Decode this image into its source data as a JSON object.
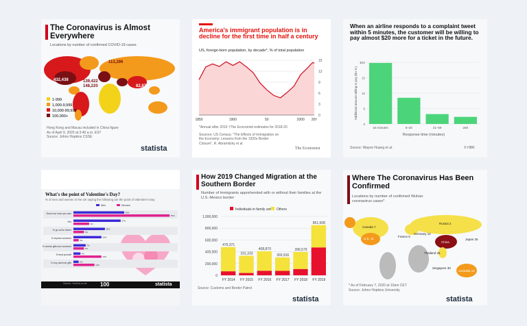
{
  "card1": {
    "title": "The Coronavirus is Almost Everywhere",
    "subtitle": "Locations by number of confirmed COVID-19 cases",
    "labels": [
      "113,296",
      "432,438",
      "139,422",
      "148,220",
      "82,870"
    ],
    "legend": [
      {
        "label": "1-999",
        "color": "#f3d21a"
      },
      {
        "label": "1,000-9,999",
        "color": "#f39a1c"
      },
      {
        "label": "10,000-99,999",
        "color": "#d7191c"
      },
      {
        "label": "100,000+",
        "color": "#7a0f14"
      }
    ],
    "notes": [
      "Hong Kong and Macau included in China figure",
      "As of April 9, 2020 at 3:40 a.m. EST",
      "Source: Johns Hopkins CSSE"
    ],
    "logo": "statista"
  },
  "card2": {
    "title": "America's immigrant population is in decline for the first time in half a century",
    "subtitle": "US, foreign-born population, by decade*, % of total population",
    "notes": [
      "*Annual after 2010  †The Economist estimates for 2018-20",
      "Sources: US Census; \"The Effects of Immigration on the Economy: Lessons from the 1920s Border Closure\", R. Abramitzky et al"
    ],
    "logo": "The Economist"
  },
  "card3": {
    "title": "When an airline responds to a complaint tweet within 5 minutes, the customer will be willing to pay almost $20 more for a ticket in the future.",
    "source": "Source: Wayne Huang et al.",
    "logo": "© HBR"
  },
  "card4": {
    "title": "What's the point of Valentine's Day?",
    "subtitle": "% of men and women in the UK saying the following are the point of Valentine's Day",
    "source": "Source: YouGov.co.uk",
    "badge": "100",
    "logo": "statista"
  },
  "card5": {
    "title": "How 2019 Changed Migration at the Southern Border",
    "subtitle": "Number of immigrants apprehended with or without their families at the U.S.-Mexico border",
    "source": "Source: Customs and Border Patrol",
    "logo": "statista"
  },
  "card6": {
    "title": "Where The Coronavirus Has Been Confirmed",
    "subtitle": "Locations by number of confirmed Wuhan coronavirus cases*",
    "labels": [
      "Canada 7",
      "U.S. 11",
      "Russia 2",
      "Germany 12",
      "France 6",
      "China",
      "Japan 25",
      "Singapore 30",
      "Thailand 25",
      "Australia 12"
    ],
    "notes": [
      "* As of February 7, 2020 at 10am CET",
      "Source: Johns Hopkins University"
    ],
    "logo": "statista"
  },
  "chart_data": [
    {
      "type": "area",
      "title": "America's immigrant population is in decline for the first time in half a century",
      "ylabel": "% of total population",
      "ylim": [
        0,
        15
      ],
      "yticks": [
        0,
        3,
        6,
        9,
        12,
        15
      ],
      "xticklabels": [
        "1850",
        "1900",
        "50",
        "2000",
        "20†"
      ],
      "grid": true,
      "x": [
        1850,
        1860,
        1870,
        1880,
        1890,
        1900,
        1910,
        1920,
        1930,
        1940,
        1950,
        1960,
        1970,
        1980,
        1990,
        2000,
        2010,
        2015,
        2018,
        2020
      ],
      "y": [
        9.7,
        13.2,
        14.0,
        13.3,
        14.6,
        13.6,
        14.6,
        13.2,
        11.6,
        8.8,
        6.9,
        5.4,
        4.7,
        6.2,
        7.9,
        11.1,
        12.9,
        13.9,
        14.4,
        14.2
      ]
    },
    {
      "type": "bar",
      "categories": [
        "≤5 minutes",
        "6–20",
        "21–59",
        "≥60"
      ],
      "values": [
        19.8,
        8.5,
        3.2,
        2.3
      ],
      "ylim": [
        0,
        20
      ],
      "yticks": [
        "0",
        "5",
        "10",
        "15",
        "$20"
      ],
      "xlabel": "Response time (minutes)",
      "ylabel": "Additional amount willing to pay ($U.S.)",
      "grid": true,
      "color": "#4cd47a"
    },
    {
      "type": "bar",
      "orientation": "horizontal",
      "categories": [
        "Show how much you care",
        "Sex",
        "To go out for dinner",
        "To impress someone",
        "To receive gifts from someone",
        "To treat yourself",
        "To buy someone gifts"
      ],
      "series": [
        {
          "name": "Men",
          "color": "#3b2bd6",
          "values": [
            29,
            27,
            18,
            16,
            7,
            4,
            3
          ]
        },
        {
          "name": "Women",
          "color": "#e0228e",
          "values": [
            55,
            9,
            6,
            3,
            6,
            16,
            12
          ]
        }
      ],
      "legend": "top"
    },
    {
      "type": "bar",
      "stacked": true,
      "categories": [
        "FY 2014",
        "FY 2015",
        "FY 2016",
        "FY 2017",
        "FY 2018",
        "FY 2019"
      ],
      "series": [
        {
          "name": "Individuals in family units",
          "color": "#e8112d",
          "values": [
            68445,
            39838,
            77674,
            75622,
            107212,
            473682
          ]
        },
        {
          "name": "Others",
          "color": "#f5e23a",
          "values": [
            410926,
            291495,
            331196,
            228294,
            289367,
            377826
          ]
        }
      ],
      "totals": [
        "479,371",
        "331,333",
        "408,870",
        "303,916",
        "396,579",
        "851,508"
      ],
      "ylim": [
        0,
        1000000
      ],
      "yticks": [
        "0",
        "200,000",
        "400,000",
        "600,000",
        "800,000",
        "1,000,000"
      ],
      "legend": "top"
    }
  ]
}
